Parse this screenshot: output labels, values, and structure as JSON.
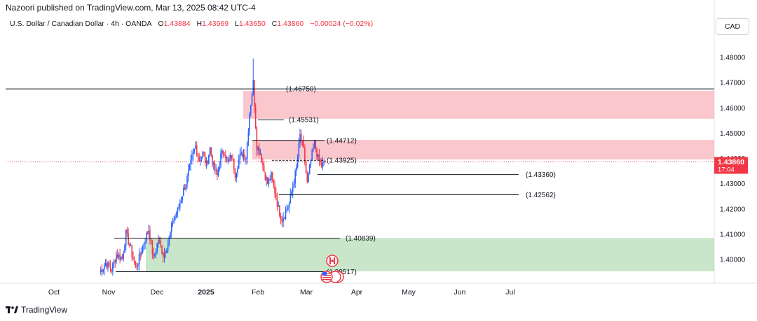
{
  "header": {
    "published": "Nazoori published on TradingView.com, Mar 13, 2025 08:42 UTC-4",
    "symbol": "U.S. Dollar / Canadian Dollar · 4h · OANDA",
    "o_label": "O",
    "o": "1.43884",
    "h_label": "H",
    "h": "1.43969",
    "l_label": "L",
    "l": "1.43650",
    "c_label": "C",
    "c": "1.43860",
    "change": "−0.00024 (−0.02%)",
    "currency_button": "CAD"
  },
  "footer": {
    "brand": "TradingView"
  },
  "colors": {
    "up": "#2962ff",
    "down": "#f23645",
    "supply_zone": "#f7a9b0",
    "demand_zone": "#a5d6a7",
    "level_line": "#131722",
    "price_badge": "#f23645"
  },
  "chart_data": {
    "type": "candlestick",
    "price_axis": {
      "min": 1.393,
      "max": 1.485,
      "ticks": [
        "1.48000",
        "1.47000",
        "1.46000",
        "1.45000",
        "1.44000",
        "1.43000",
        "1.42000",
        "1.41000",
        "1.40000"
      ]
    },
    "time_axis": {
      "labels": [
        "Oct",
        "Nov",
        "Dec",
        "2025",
        "Feb",
        "Mar",
        "Apr",
        "May",
        "Jun",
        "Jul"
      ]
    },
    "current_price": {
      "value": "1.43860",
      "countdown": "17:04"
    },
    "levels": [
      {
        "label": "(1.46750)",
        "value": 1.4675
      },
      {
        "label": "(1.45531)",
        "value": 1.45531
      },
      {
        "label": "(1.44712)",
        "value": 1.44712
      },
      {
        "label": "(1.43925)",
        "value": 1.43925
      },
      {
        "label": "(1.43360)",
        "value": 1.4336
      },
      {
        "label": "(1.42562)",
        "value": 1.42562
      },
      {
        "label": "(1.40839)",
        "value": 1.40839
      },
      {
        "label": "(1.39517)",
        "value": 1.39517
      }
    ],
    "zones": [
      {
        "name": "supply-upper",
        "from": 1.4557,
        "to": 1.4667
      },
      {
        "name": "supply-lower",
        "from": 1.4396,
        "to": 1.4473
      },
      {
        "name": "demand",
        "from": 1.3953,
        "to": 1.4085
      }
    ],
    "price_path": [
      [
        0,
        1.395
      ],
      [
        5,
        1.3985
      ],
      [
        10,
        1.396
      ],
      [
        14,
        1.402
      ],
      [
        19,
        1.4005
      ],
      [
        22,
        1.4102
      ],
      [
        26,
        1.404
      ],
      [
        30,
        1.3965
      ],
      [
        33,
        1.4005
      ],
      [
        37,
        1.407
      ],
      [
        41,
        1.412
      ],
      [
        45,
        1.4
      ],
      [
        49,
        1.408
      ],
      [
        53,
        1.402
      ],
      [
        57,
        1.406
      ],
      [
        61,
        1.415
      ],
      [
        65,
        1.419
      ],
      [
        69,
        1.426
      ],
      [
        73,
        1.432
      ],
      [
        77,
        1.44
      ],
      [
        80,
        1.445
      ],
      [
        83,
        1.4395
      ],
      [
        86,
        1.442
      ],
      [
        89,
        1.4375
      ],
      [
        92,
        1.444
      ],
      [
        95,
        1.4365
      ],
      [
        98,
        1.433
      ],
      [
        101,
        1.441
      ],
      [
        104,
        1.443
      ],
      [
        107,
        1.438
      ],
      [
        110,
        1.441
      ],
      [
        113,
        1.434
      ],
      [
        116,
        1.4395
      ],
      [
        119,
        1.442
      ],
      [
        122,
        1.4405
      ],
      [
        125,
        1.458
      ],
      [
        128,
        1.47
      ],
      [
        131,
        1.445
      ],
      [
        134,
        1.442
      ],
      [
        137,
        1.435
      ],
      [
        140,
        1.43
      ],
      [
        143,
        1.433
      ],
      [
        146,
        1.427
      ],
      [
        149,
        1.42
      ],
      [
        152,
        1.416
      ],
      [
        155,
        1.419
      ],
      [
        158,
        1.422
      ],
      [
        161,
        1.429
      ],
      [
        164,
        1.436
      ],
      [
        167,
        1.449
      ],
      [
        170,
        1.443
      ],
      [
        173,
        1.43
      ],
      [
        176,
        1.439
      ],
      [
        179,
        1.446
      ],
      [
        182,
        1.44
      ],
      [
        185,
        1.437
      ],
      [
        188,
        1.4386
      ]
    ]
  }
}
